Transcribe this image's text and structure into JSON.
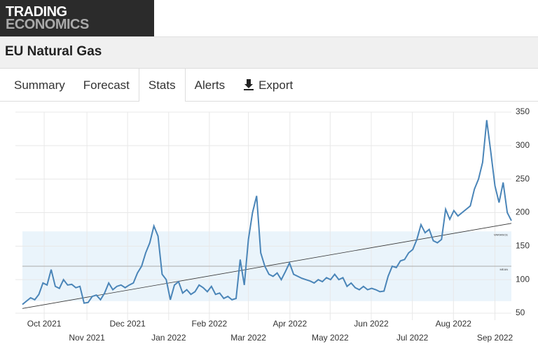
{
  "header": {
    "logo_line1": "TRADING",
    "logo_line2": "ECONOMICS",
    "title": "EU Natural Gas"
  },
  "tabs": [
    "Summary",
    "Forecast",
    "Stats",
    "Alerts",
    "Export"
  ],
  "chart_data": {
    "type": "line",
    "series": [
      {
        "color": "#4a85b8",
        "values": [
          63,
          68,
          73,
          70,
          78,
          95,
          92,
          115,
          90,
          87,
          100,
          92,
          93,
          88,
          90,
          65,
          66,
          75,
          77,
          70,
          80,
          95,
          85,
          90,
          92,
          88,
          92,
          95,
          110,
          120,
          140,
          155,
          180,
          165,
          108,
          100,
          70,
          92,
          97,
          80,
          85,
          78,
          82,
          92,
          88,
          82,
          90,
          78,
          80,
          72,
          75,
          70,
          72,
          130,
          92,
          160,
          200,
          225,
          140,
          120,
          108,
          105,
          110,
          100,
          112,
          125,
          108,
          105,
          102,
          100,
          98,
          95,
          100,
          97,
          103,
          100,
          108,
          100,
          103,
          90,
          95,
          88,
          85,
          90,
          85,
          87,
          85,
          82,
          83,
          105,
          120,
          118,
          128,
          130,
          140,
          145,
          160,
          182,
          170,
          175,
          158,
          155,
          160,
          205,
          190,
          203,
          195,
          200,
          205,
          210,
          235,
          250,
          275,
          338,
          290,
          240,
          215,
          245,
          200,
          188
        ]
      }
    ],
    "xlim": [
      0,
      119
    ],
    "xticks": [
      {
        "value": 5.3,
        "label": "Oct 2021"
      },
      {
        "value": 15.7,
        "label": "Nov 2021"
      },
      {
        "value": 25.6,
        "label": "Dec 2021"
      },
      {
        "value": 35.6,
        "label": "Jan 2022"
      },
      {
        "value": 45.5,
        "label": "Feb 2022"
      },
      {
        "value": 55,
        "label": "Mar 2022"
      },
      {
        "value": 65.1,
        "label": "Apr 2022"
      },
      {
        "value": 74.9,
        "label": "May 2022"
      },
      {
        "value": 84.9,
        "label": "Jun 2022"
      },
      {
        "value": 94.9,
        "label": "Jul 2022"
      },
      {
        "value": 104.9,
        "label": "Aug 2022"
      },
      {
        "value": 115,
        "label": "Sep 2022"
      }
    ],
    "ylim": [
      50,
      350
    ],
    "yticks": [
      50,
      100,
      150,
      200,
      250,
      300,
      350
    ],
    "grid": true,
    "mean": 120,
    "mean_label": "MEAN",
    "variance_band": [
      68,
      172
    ],
    "variance_label": "VARIANCE",
    "trend": [
      57,
      184
    ]
  }
}
